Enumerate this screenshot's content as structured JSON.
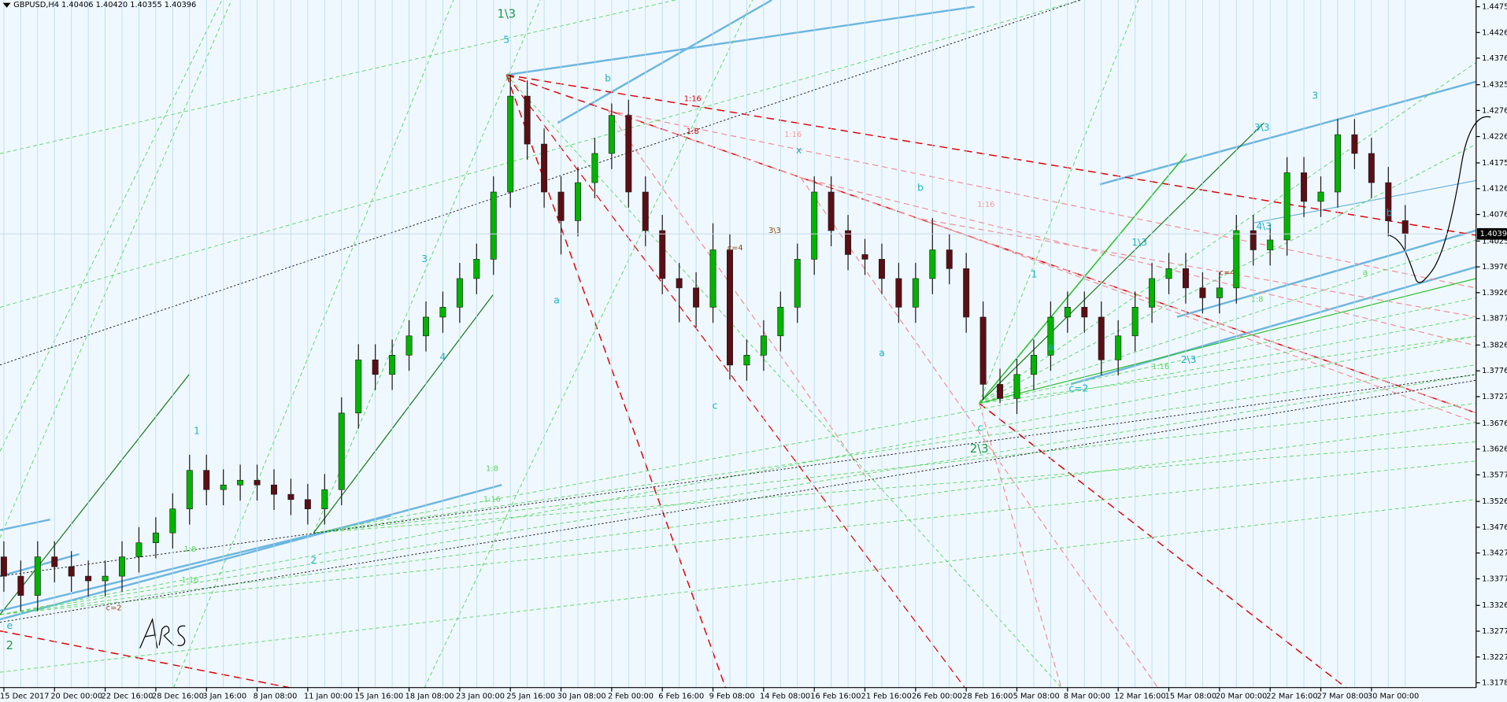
{
  "chart_data": {
    "type": "candlestick",
    "title": "GBPUSD,H4  1.40406 1.40420 1.40355 1.40396",
    "categories": [
      "15 Dec 2017",
      null,
      null,
      "20 Dec 00:00",
      null,
      null,
      "22 Dec 16:00",
      null,
      null,
      "28 Dec 16:00",
      null,
      null,
      "3 Jan 16:00",
      null,
      null,
      "8 Jan 08:00",
      null,
      null,
      "11 Jan 00:00",
      null,
      null,
      "15 Jan 16:00",
      null,
      null,
      "18 Jan 08:00",
      null,
      null,
      "23 Jan 00:00",
      null,
      null,
      "25 Jan 16:00",
      null,
      null,
      "30 Jan 08:00",
      null,
      null,
      "2 Feb 00:00",
      null,
      null,
      "6 Feb 16:00",
      null,
      null,
      "9 Feb 08:00",
      null,
      null,
      "14 Feb 08:00",
      null,
      null,
      "16 Feb 16:00",
      null,
      null,
      "21 Feb 16:00",
      null,
      null,
      "26 Feb 00:00",
      null,
      null,
      "28 Feb 16:00",
      null,
      null,
      "5 Mar 08:00",
      null,
      null,
      "8 Mar 00:00",
      null,
      null,
      "12 Mar 16:00",
      null,
      null,
      "15 Mar 08:00",
      null,
      null,
      "20 Mar 00:00",
      null,
      null,
      "22 Mar 16:00",
      null,
      null,
      "27 Mar 08:00",
      null,
      null,
      "30 Mar 00:00",
      null,
      null
    ],
    "candles": {
      "open": [
        1.342,
        1.3383,
        1.3346,
        1.342,
        1.3401,
        1.3383,
        1.3374,
        1.3383,
        1.342,
        1.3447,
        1.3466,
        1.3512,
        1.3586,
        1.3549,
        1.3558,
        1.3567,
        1.3558,
        1.354,
        1.353,
        1.3512,
        1.3549,
        1.3696,
        1.3798,
        1.377,
        1.3807,
        1.3844,
        1.388,
        1.3899,
        1.3954,
        1.3991,
        1.412,
        1.4304,
        1.4212,
        1.412,
        1.4065,
        1.4138,
        1.4194,
        1.4267,
        1.412,
        1.4046,
        1.3954,
        1.3936,
        1.3899,
        1.4009,
        1.3788,
        1.3807,
        1.3844,
        1.3899,
        1.3991,
        1.412,
        1.4046,
        1.4,
        1.3991,
        1.3954,
        1.3899,
        1.3954,
        1.4009,
        1.3973,
        1.388,
        1.3751,
        1.3724,
        1.377,
        1.3807,
        1.388,
        1.3899,
        1.388,
        1.3798,
        1.3844,
        1.3899,
        1.3954,
        1.3973,
        1.3936,
        1.3917,
        1.3936,
        1.4046,
        1.4009,
        1.4028,
        1.4157,
        1.4102,
        1.412,
        1.423,
        1.4194,
        1.4138,
        1.4065
      ],
      "high": [
        1.345,
        1.3413,
        1.345,
        1.345,
        1.3431,
        1.3413,
        1.3413,
        1.345,
        1.3477,
        1.3496,
        1.3542,
        1.3616,
        1.3616,
        1.3588,
        1.3597,
        1.3597,
        1.3588,
        1.357,
        1.356,
        1.3579,
        1.3726,
        1.3828,
        1.3828,
        1.3837,
        1.3874,
        1.391,
        1.3929,
        1.3984,
        1.4021,
        1.415,
        1.4345,
        1.4334,
        1.4242,
        1.415,
        1.4168,
        1.4224,
        1.429,
        1.4297,
        1.415,
        1.4076,
        1.3984,
        1.3966,
        1.406,
        1.4039,
        1.3837,
        1.3874,
        1.3929,
        1.4021,
        1.415,
        1.415,
        1.4076,
        1.403,
        1.4021,
        1.3984,
        1.3984,
        1.407,
        1.4039,
        1.4003,
        1.391,
        1.3781,
        1.38,
        1.3837,
        1.391,
        1.3929,
        1.3929,
        1.391,
        1.3874,
        1.3929,
        1.3984,
        1.4003,
        1.4003,
        1.3966,
        1.3966,
        1.4076,
        1.4076,
        1.4058,
        1.4187,
        1.4187,
        1.415,
        1.426,
        1.426,
        1.4224,
        1.4168,
        1.4095
      ],
      "low": [
        1.3353,
        1.3316,
        1.3316,
        1.3371,
        1.3353,
        1.3344,
        1.3344,
        1.3353,
        1.339,
        1.3417,
        1.3436,
        1.3482,
        1.3519,
        1.3519,
        1.3528,
        1.3528,
        1.351,
        1.35,
        1.3482,
        1.3482,
        1.3519,
        1.3666,
        1.374,
        1.374,
        1.3777,
        1.3814,
        1.385,
        1.3869,
        1.3924,
        1.3961,
        1.409,
        1.4182,
        1.409,
        1.4,
        1.4035,
        1.4108,
        1.4164,
        1.409,
        1.4016,
        1.3924,
        1.387,
        1.386,
        1.3869,
        1.376,
        1.3758,
        1.3777,
        1.3814,
        1.3869,
        1.3961,
        1.4016,
        1.397,
        1.3961,
        1.3924,
        1.3869,
        1.3869,
        1.3924,
        1.3943,
        1.385,
        1.3721,
        1.3715,
        1.3694,
        1.374,
        1.3777,
        1.385,
        1.385,
        1.3768,
        1.3768,
        1.3814,
        1.3869,
        1.3924,
        1.3906,
        1.3887,
        1.3887,
        1.3906,
        1.3979,
        1.3979,
        1.3998,
        1.4072,
        1.4072,
        1.409,
        1.4164,
        1.4108,
        1.4035,
        1.401
      ],
      "close": [
        1.3383,
        1.3346,
        1.342,
        1.3401,
        1.3383,
        1.3374,
        1.3383,
        1.342,
        1.3447,
        1.3466,
        1.3512,
        1.3586,
        1.3549,
        1.3558,
        1.3567,
        1.3558,
        1.354,
        1.353,
        1.3512,
        1.3549,
        1.3696,
        1.3798,
        1.377,
        1.3807,
        1.3844,
        1.388,
        1.3899,
        1.3954,
        1.3991,
        1.412,
        1.4304,
        1.4212,
        1.412,
        1.4065,
        1.4138,
        1.4194,
        1.4267,
        1.412,
        1.4046,
        1.3954,
        1.3936,
        1.3899,
        1.4009,
        1.3788,
        1.3807,
        1.3844,
        1.3899,
        1.3991,
        1.412,
        1.4046,
        1.4,
        1.3991,
        1.3954,
        1.3899,
        1.3954,
        1.4009,
        1.3973,
        1.388,
        1.3751,
        1.3724,
        1.377,
        1.3807,
        1.388,
        1.3899,
        1.388,
        1.3798,
        1.3844,
        1.3899,
        1.3954,
        1.3973,
        1.3936,
        1.3917,
        1.3936,
        1.4046,
        1.4009,
        1.4028,
        1.4157,
        1.4102,
        1.412,
        1.423,
        1.4194,
        1.4138,
        1.4065,
        1.40396
      ]
    },
    "up_color": "#00b400",
    "down_color": "#5a0f14",
    "last_price": 1.40396,
    "ylim": [
      1.31692,
      1.44884
    ],
    "yticks": [
      1.44755,
      {
        "value": 1.4426,
        "label": "1.44260"
      },
      1.43769,
      1.43259,
      1.42764,
      1.42264,
      1.41759,
      1.41264,
      1.40769,
      1.40259,
      1.39764,
      1.39269,
      1.38774,
      1.38264,
      1.37769,
      1.37274,
      1.36764,
      1.36269,
      1.35774,
      1.35264,
      1.34769,
      1.34274,
      1.33779,
      1.33269,
      1.32774,
      1.32279,
      1.31784
    ],
    "grid": true,
    "annotations": [
      "1\\3",
      "5",
      "b",
      "x",
      "b",
      "3",
      "b",
      "a",
      "c",
      "a",
      "c",
      "2\\3",
      "1",
      "2",
      "2",
      "e",
      "3",
      "4",
      "1",
      "a",
      "c=2",
      "1\\3",
      "3\\3",
      "4\\3",
      "2\\3",
      "a",
      "1:16",
      "1:8",
      "1:16",
      "1:16",
      "1:8",
      "1:16",
      "1:8",
      "1:16",
      "1:8",
      "1:16",
      "c=4",
      "c=2",
      "3\\3",
      "c=4"
    ]
  }
}
